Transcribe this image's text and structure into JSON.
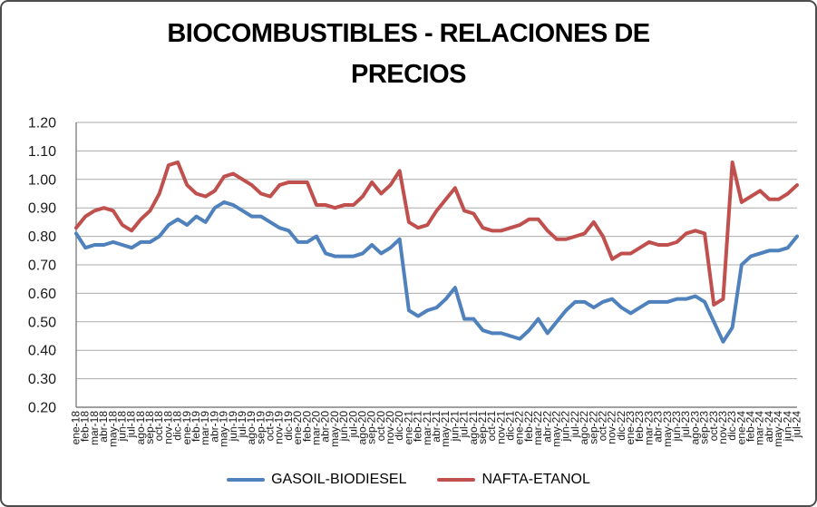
{
  "title_lines": [
    "BIOCOMBUSTIBLES - RELACIONES DE",
    "PRECIOS"
  ],
  "chart_data": {
    "type": "line",
    "title": "BIOCOMBUSTIBLES - RELACIONES DE PRECIOS",
    "xlabel": "",
    "ylabel": "",
    "ylim": [
      0.2,
      1.2
    ],
    "grid": true,
    "legend_position": "bottom",
    "x_tick_rotation": -90,
    "y_ticks": [
      "1.20",
      "1.10",
      "1.00",
      "0.90",
      "0.80",
      "0.70",
      "0.60",
      "0.50",
      "0.40",
      "0.30",
      "0.20"
    ],
    "categories": [
      "ene-18",
      "feb-18",
      "mar-18",
      "abr-18",
      "may-18",
      "jun-18",
      "jul-18",
      "ago-18",
      "sep-18",
      "oct-18",
      "nov-18",
      "dic-18",
      "ene-19",
      "feb-19",
      "mar-19",
      "abr-19",
      "may-19",
      "jun-19",
      "jul-19",
      "ago-19",
      "sep-19",
      "oct-19",
      "nov-19",
      "dic-19",
      "ene-20",
      "feb-20",
      "mar-20",
      "abr-20",
      "may-20",
      "jun-20",
      "jul-20",
      "ago-20",
      "sep-20",
      "oct-20",
      "nov-20",
      "dic-20",
      "ene-21",
      "feb-21",
      "mar-21",
      "abr-21",
      "may-21",
      "jun-21",
      "jul-21",
      "ago-21",
      "sep-21",
      "oct-21",
      "nov-21",
      "dic-21",
      "ene-22",
      "feb-22",
      "mar-22",
      "abr-22",
      "may-22",
      "jun-22",
      "jul-22",
      "ago-22",
      "sep-22",
      "oct-22",
      "nov-22",
      "dic-22",
      "ene-23",
      "feb-23",
      "mar-23",
      "abr-23",
      "may-23",
      "jun-23",
      "jul-23",
      "ago-23",
      "sep-23",
      "oct-23",
      "nov-23",
      "dic-23",
      "ene-24",
      "feb-24",
      "mar-24",
      "abr-24",
      "may-24",
      "jun-24",
      "jul-24"
    ],
    "series": [
      {
        "name": "GASOIL-BIODIESEL",
        "color": "#4F81BD",
        "values": [
          0.81,
          0.76,
          0.77,
          0.77,
          0.78,
          0.77,
          0.76,
          0.78,
          0.78,
          0.8,
          0.84,
          0.86,
          0.84,
          0.87,
          0.85,
          0.9,
          0.92,
          0.91,
          0.89,
          0.87,
          0.87,
          0.85,
          0.83,
          0.82,
          0.78,
          0.78,
          0.8,
          0.74,
          0.73,
          0.73,
          0.73,
          0.74,
          0.77,
          0.74,
          0.76,
          0.79,
          0.54,
          0.52,
          0.54,
          0.55,
          0.58,
          0.62,
          0.51,
          0.51,
          0.47,
          0.46,
          0.46,
          0.45,
          0.44,
          0.47,
          0.51,
          0.46,
          0.5,
          0.54,
          0.57,
          0.57,
          0.55,
          0.57,
          0.58,
          0.55,
          0.53,
          0.55,
          0.57,
          0.57,
          0.57,
          0.58,
          0.58,
          0.59,
          0.57,
          0.5,
          0.43,
          0.48,
          0.7,
          0.73,
          0.74,
          0.75,
          0.75,
          0.76,
          0.8
        ]
      },
      {
        "name": "NAFTA-ETANOL",
        "color": "#C0504D",
        "values": [
          0.83,
          0.87,
          0.89,
          0.9,
          0.89,
          0.84,
          0.82,
          0.86,
          0.89,
          0.95,
          1.05,
          1.06,
          0.98,
          0.95,
          0.94,
          0.96,
          1.01,
          1.02,
          1.0,
          0.98,
          0.95,
          0.94,
          0.98,
          0.99,
          0.99,
          0.99,
          0.91,
          0.91,
          0.9,
          0.91,
          0.91,
          0.94,
          0.99,
          0.95,
          0.98,
          1.03,
          0.85,
          0.83,
          0.84,
          0.89,
          0.93,
          0.97,
          0.89,
          0.88,
          0.83,
          0.82,
          0.82,
          0.83,
          0.84,
          0.86,
          0.86,
          0.82,
          0.79,
          0.79,
          0.8,
          0.81,
          0.85,
          0.8,
          0.72,
          0.74,
          0.74,
          0.76,
          0.78,
          0.77,
          0.77,
          0.78,
          0.81,
          0.82,
          0.81,
          0.56,
          0.58,
          1.06,
          0.92,
          0.94,
          0.96,
          0.93,
          0.93,
          0.95,
          0.98
        ]
      }
    ],
    "colors": {
      "gridline": "#ABABAB",
      "axis": "#808080",
      "tick_text": "#1a1a1a"
    }
  }
}
